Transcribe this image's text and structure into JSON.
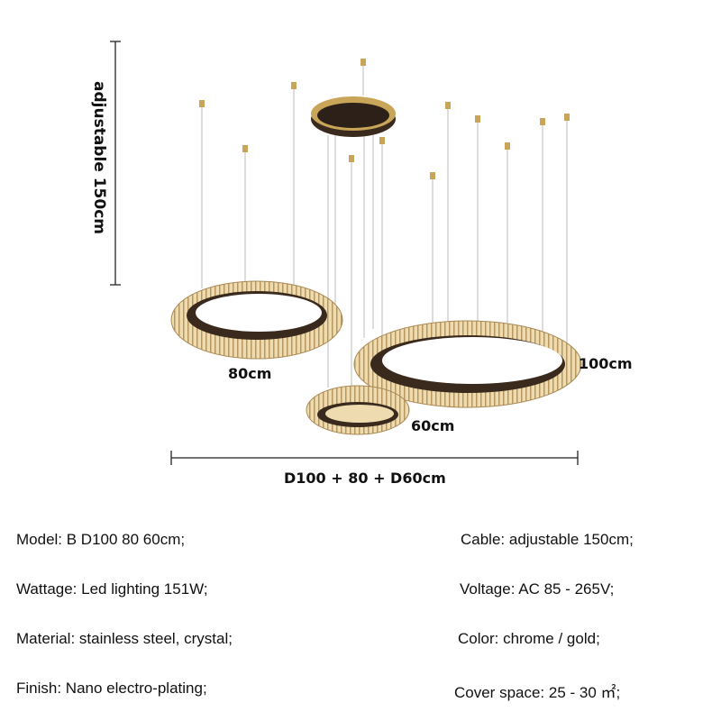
{
  "dimensions": {
    "height_label": "adjustable 150cm",
    "width_label": "D100 + 80 + D60cm",
    "ring_labels": [
      "80cm",
      "100cm",
      "60cm"
    ]
  },
  "specs": {
    "left": [
      "Model: B D100 80 60cm;",
      "Wattage: Led lighting 151W;",
      "Material: stainless steel, crystal;",
      "Finish: Nano electro-plating;"
    ],
    "right": [
      "Cable: adjustable 150cm;",
      "Voltage: AC 85 - 265V;",
      "Color: chrome / gold;",
      "Cover space: 25 - 30 ㎡;"
    ]
  },
  "colors": {
    "gold": "#c9a55a",
    "crystal": "#e8d6a8",
    "dark": "#3a2a1e"
  }
}
